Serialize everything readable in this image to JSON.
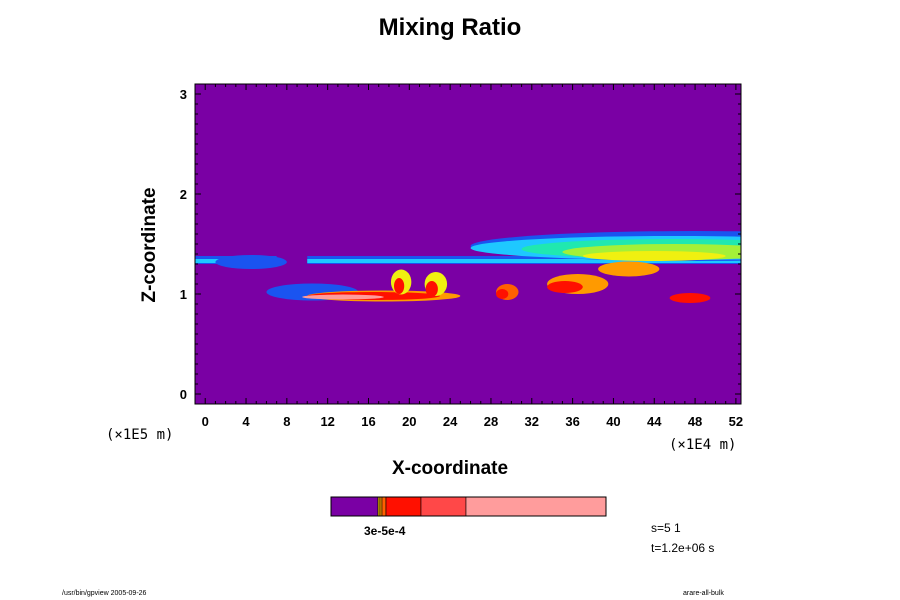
{
  "chart_data": {
    "type": "heatmap",
    "title": "Mixing Ratio",
    "xlabel": "X-coordinate",
    "ylabel": "Z-coordinate",
    "x_unit": "(×1E4 m)",
    "y_unit": "(×1E5 m)",
    "xlim": [
      -1,
      52.5
    ],
    "ylim": [
      -0.1,
      3.1
    ],
    "x_ticks": [
      "0",
      "4",
      "8",
      "12",
      "16",
      "20",
      "24",
      "28",
      "32",
      "36",
      "40",
      "44",
      "48",
      "52"
    ],
    "y_ticks": [
      "0",
      "1",
      "2",
      "3"
    ],
    "background_color": "#7a00a4",
    "colorbar": {
      "segments": [
        {
          "color": "#7a00a4"
        },
        {
          "color": "#e8b800"
        },
        {
          "color": "#ff9a00"
        },
        {
          "color": "#ff6000"
        },
        {
          "color": "#ff1000"
        },
        {
          "color": "#ff4848"
        },
        {
          "color": "#ff9c9c"
        }
      ],
      "label": "3e-5e-4"
    },
    "bands": [
      {
        "name": "cloud-outer",
        "color": "#1a54f0",
        "regions": [
          {
            "x0": -1,
            "x1": 52.5,
            "z0": 1.3,
            "z1": 1.38,
            "only": [
              [
                -1,
                7
              ],
              [
                10,
                52.5
              ]
            ]
          }
        ]
      },
      {
        "name": "cloud-layer",
        "regions": [
          {
            "x": 1.0,
            "z": 1.32,
            "w": 7.0,
            "h": 0.14,
            "color": "#1a54f0"
          },
          {
            "x": 26.0,
            "z": 1.48,
            "w": 44.0,
            "h": 0.3,
            "color": "#1a54f0"
          },
          {
            "x": 26.0,
            "z": 1.46,
            "w": 40.0,
            "h": 0.24,
            "color": "#1ec8ff"
          },
          {
            "x": 31.0,
            "z": 1.45,
            "w": 30.0,
            "h": 0.2,
            "color": "#20e8b0"
          },
          {
            "x": 35.0,
            "z": 1.42,
            "w": 22.0,
            "h": 0.16,
            "color": "#a4f038"
          },
          {
            "x": 37.0,
            "z": 1.38,
            "w": 14.0,
            "h": 0.1,
            "color": "#f0f010"
          },
          {
            "x": 6.0,
            "z": 1.02,
            "w": 9.0,
            "h": 0.17,
            "color": "#1a54f0"
          },
          {
            "x": 10.0,
            "z": 0.98,
            "w": 15.0,
            "h": 0.11,
            "color": "#ff9a00"
          },
          {
            "x": 10.0,
            "z": 0.98,
            "w": 13.0,
            "h": 0.08,
            "color": "#ff1000"
          },
          {
            "x": 9.5,
            "z": 0.97,
            "w": 8.0,
            "h": 0.05,
            "color": "#ff9c9c"
          },
          {
            "x": 18.2,
            "z": 1.12,
            "w": 2.0,
            "h": 0.25,
            "color": "#f0f010"
          },
          {
            "x": 18.5,
            "z": 1.08,
            "w": 1.0,
            "h": 0.16,
            "color": "#ff1000"
          },
          {
            "x": 21.5,
            "z": 1.1,
            "w": 2.2,
            "h": 0.24,
            "color": "#f0f010"
          },
          {
            "x": 21.6,
            "z": 1.05,
            "w": 1.2,
            "h": 0.16,
            "color": "#ff1000"
          },
          {
            "x": 28.5,
            "z": 1.02,
            "w": 2.2,
            "h": 0.16,
            "color": "#ff6000"
          },
          {
            "x": 28.5,
            "z": 1.0,
            "w": 1.2,
            "h": 0.1,
            "color": "#ff1000"
          },
          {
            "x": 33.5,
            "z": 1.1,
            "w": 6.0,
            "h": 0.2,
            "color": "#ff9a00"
          },
          {
            "x": 33.5,
            "z": 1.07,
            "w": 3.5,
            "h": 0.12,
            "color": "#ff1000"
          },
          {
            "x": 38.5,
            "z": 1.25,
            "w": 6.0,
            "h": 0.15,
            "color": "#ff9a00"
          },
          {
            "x": 45.5,
            "z": 0.96,
            "w": 4.0,
            "h": 0.1,
            "color": "#ff1000"
          }
        ]
      }
    ]
  },
  "info": {
    "line1": "s=5 1",
    "line2": "t=1.2e+06 s"
  },
  "footer": {
    "left": "/usr/bin/gpview 2005-09-26",
    "right": "arare-all-bulk"
  }
}
